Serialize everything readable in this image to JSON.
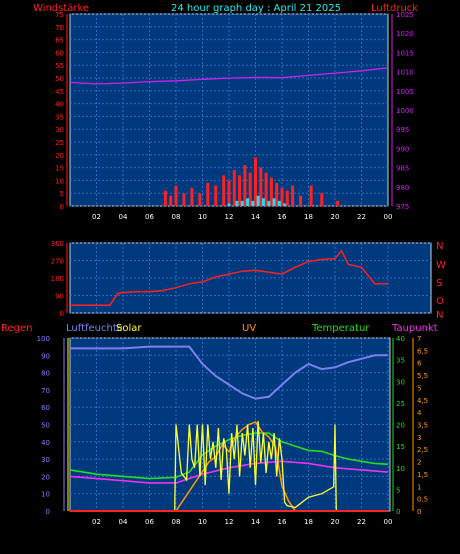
{
  "header": {
    "title": "24 hour graph day : April 21 2025",
    "left_label": "Windstärke",
    "right_label": "Luftdruck"
  },
  "compass": [
    "N",
    "W",
    "S",
    "O",
    "N"
  ],
  "bottom_header": {
    "rain": "Regen",
    "humidity": "Luftfeuchte",
    "solar": "Solar",
    "uv": "UV",
    "temperature": "Temperatur",
    "dewpoint": "Taupunkt"
  },
  "colors": {
    "panel": "#003a7e",
    "grid": "#2f68c0",
    "wind": "#ff2020",
    "gust": "#28d8f0",
    "pressure": "#cc22ee",
    "winddir": "#ff2020",
    "humidity": "#7f7ff0",
    "solar": "#ffff30",
    "uv": "#ff9900",
    "temperature": "#22dd22",
    "dewpoint": "#ee33ee",
    "rain": "#ff2222",
    "title": "#22eeee"
  },
  "chart_data": [
    {
      "type": "line",
      "title": "24 hour graph day : April 21 2025",
      "xlabel": "",
      "ylabel": "Windstärke",
      "y2label": "Luftdruck",
      "x_ticks": [
        "02",
        "04",
        "06",
        "08",
        "10",
        "12",
        "14",
        "16",
        "18",
        "20",
        "22",
        "00"
      ],
      "xlim": [
        0,
        24
      ],
      "ylim": [
        0,
        75
      ],
      "y_ticks": [
        0,
        5,
        10,
        15,
        20,
        25,
        30,
        35,
        40,
        45,
        50,
        55,
        60,
        65,
        70,
        75
      ],
      "y2lim": [
        975,
        1025
      ],
      "y2_ticks": [
        975,
        980,
        985,
        990,
        995,
        1000,
        1005,
        1010,
        1015,
        1020,
        1025
      ],
      "series": [
        {
          "name": "Luftdruck",
          "axis": "y2",
          "x": [
            0,
            2,
            4,
            6,
            8,
            10,
            12,
            14,
            16,
            18,
            20,
            22,
            24
          ],
          "y": [
            1007.2,
            1006.8,
            1007.0,
            1007.4,
            1007.6,
            1008.0,
            1008.3,
            1008.5,
            1008.4,
            1009.0,
            1009.6,
            1010.2,
            1011.0
          ]
        },
        {
          "name": "Windstärke",
          "axis": "y",
          "style": "bars",
          "x": [
            7.2,
            7.6,
            8.0,
            8.6,
            9.2,
            9.8,
            10.4,
            11.0,
            11.6,
            12.0,
            12.4,
            12.8,
            13.2,
            13.6,
            14.0,
            14.4,
            14.8,
            15.2,
            15.6,
            16.0,
            16.4,
            16.8,
            17.4,
            18.2,
            19.0,
            20.2
          ],
          "y": [
            6,
            4,
            8,
            5,
            7,
            5,
            9,
            8,
            12,
            10,
            14,
            12,
            16,
            13,
            19,
            15,
            13,
            11,
            9,
            7,
            6,
            8,
            4,
            8,
            5,
            2
          ]
        },
        {
          "name": "Böen",
          "axis": "y",
          "style": "bars",
          "x": [
            12.0,
            12.6,
            13.0,
            13.4,
            13.8,
            14.2,
            14.6,
            15.0,
            15.4,
            15.8,
            16.2
          ],
          "y": [
            1,
            2,
            2,
            3,
            2,
            4,
            3,
            2,
            3,
            2,
            1
          ]
        }
      ]
    },
    {
      "type": "line",
      "xlim": [
        0,
        24
      ],
      "ylim": [
        0,
        360
      ],
      "y_ticks": [
        0,
        90,
        180,
        270,
        360
      ],
      "series": [
        {
          "name": "Windrichtung",
          "x": [
            0,
            1,
            2,
            3,
            3.6,
            4,
            5,
            6,
            7,
            8,
            9,
            10,
            11,
            12,
            13,
            14,
            15,
            16,
            17,
            18,
            19,
            20,
            20.5,
            21,
            22,
            23,
            24
          ],
          "y": [
            40,
            40,
            40,
            40,
            100,
            105,
            110,
            110,
            115,
            130,
            150,
            160,
            185,
            200,
            215,
            220,
            210,
            200,
            235,
            265,
            275,
            280,
            320,
            250,
            235,
            150,
            150
          ]
        }
      ]
    },
    {
      "type": "line",
      "xlim": [
        0,
        24
      ],
      "ylim": [
        0,
        100
      ],
      "y_ticks": [
        0,
        10,
        20,
        30,
        40,
        50,
        60,
        70,
        80,
        90,
        100
      ],
      "y_temp_lim": [
        0,
        40
      ],
      "y_temp_ticks": [
        0,
        5,
        10,
        15,
        20,
        25,
        30,
        35,
        40
      ],
      "y_uv_lim": [
        0,
        7
      ],
      "y_uv_ticks": [
        0,
        0.5,
        1,
        1.5,
        2,
        2.5,
        3,
        3.5,
        4,
        4.5,
        5,
        5.5,
        6,
        6.5,
        7
      ],
      "series": [
        {
          "name": "Luftfeuchte",
          "axis": "humidity",
          "x": [
            0,
            2,
            4,
            6,
            8,
            9,
            10,
            11,
            12,
            13,
            14,
            15,
            16,
            17,
            18,
            19,
            20,
            21,
            22,
            23,
            24
          ],
          "y": [
            94,
            94,
            94,
            95,
            95,
            95,
            85,
            78,
            73,
            68,
            65,
            66,
            73,
            80,
            85,
            82,
            83,
            86,
            88,
            90,
            90
          ]
        },
        {
          "name": "Temperatur",
          "axis": "temp",
          "x": [
            0,
            2,
            4,
            6,
            8,
            9,
            10,
            11,
            12,
            13,
            14,
            15,
            16,
            17,
            18,
            19,
            20,
            21,
            22,
            23,
            24
          ],
          "y": [
            9.5,
            8.5,
            8,
            7.5,
            7.8,
            9,
            13,
            15,
            16.5,
            17.5,
            18,
            18,
            16,
            15,
            14,
            13.8,
            12.8,
            12,
            11.5,
            11,
            10.8
          ]
        },
        {
          "name": "Taupunkt",
          "axis": "temp",
          "x": [
            0,
            2,
            4,
            6,
            8,
            10,
            12,
            14,
            16,
            18,
            20,
            22,
            24
          ],
          "y": [
            8,
            7.5,
            7,
            6.5,
            6.5,
            8.5,
            10,
            11,
            11.5,
            11,
            10,
            9.5,
            9
          ]
        },
        {
          "name": "Solar",
          "axis": "humidity",
          "x": [
            7.9,
            8.0,
            8.4,
            8.8,
            9.0,
            9.2,
            9.4,
            9.6,
            9.8,
            10.0,
            10.2,
            10.4,
            10.6,
            10.8,
            11.0,
            11.2,
            11.4,
            11.6,
            11.8,
            12.0,
            12.2,
            12.4,
            12.6,
            12.8,
            13.0,
            13.2,
            13.4,
            13.6,
            13.8,
            14.0,
            14.2,
            14.4,
            14.6,
            14.8,
            15.0,
            15.2,
            15.4,
            15.6,
            15.8,
            16.0,
            16.2,
            16.4,
            17.0,
            18.0,
            19.0,
            19.9,
            20.0,
            20.1
          ],
          "y": [
            0,
            50,
            22,
            18,
            50,
            30,
            25,
            50,
            20,
            50,
            15,
            50,
            30,
            40,
            25,
            48,
            18,
            42,
            35,
            10,
            45,
            30,
            50,
            20,
            45,
            32,
            50,
            25,
            48,
            15,
            52,
            28,
            45,
            22,
            40,
            30,
            45,
            20,
            42,
            30,
            5,
            3,
            2,
            8,
            10,
            14,
            50,
            0
          ]
        },
        {
          "name": "UV",
          "axis": "uv",
          "x": [
            8,
            9,
            10,
            10.5,
            11,
            11.5,
            12,
            12.5,
            13,
            13.5,
            14,
            14.5,
            15,
            15.5,
            16,
            16.5,
            17
          ],
          "y": [
            0,
            0.8,
            1.6,
            2.0,
            2.2,
            2.7,
            2.4,
            3.0,
            3.3,
            3.5,
            3.6,
            3.2,
            3.0,
            2.6,
            1.0,
            0.4,
            0
          ]
        },
        {
          "name": "Regen",
          "axis": "rain",
          "x": [
            0,
            24
          ],
          "y": [
            0,
            0
          ]
        }
      ]
    }
  ]
}
